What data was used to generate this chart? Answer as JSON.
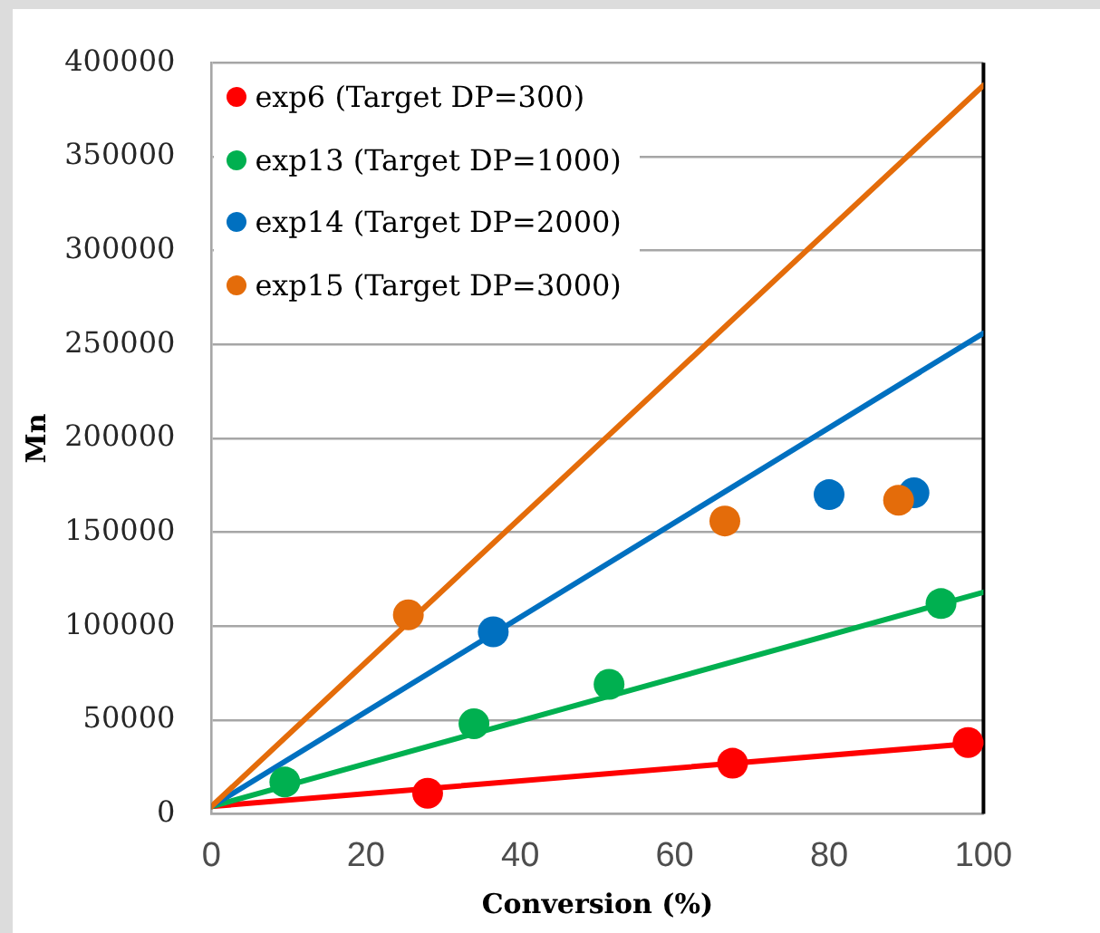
{
  "chart_data": {
    "type": "scatter",
    "xlabel": "Conversion (%)",
    "ylabel": "Mn",
    "xlim": [
      0,
      100
    ],
    "xticks": [
      0,
      20,
      40,
      60,
      80,
      100
    ],
    "ylim": [
      0,
      400000
    ],
    "yticks": [
      0,
      50000,
      100000,
      150000,
      200000,
      250000,
      300000,
      350000,
      400000
    ],
    "grid": "y",
    "legend": "top left",
    "marker": "circle",
    "ref_lines": [
      {
        "axis": "x",
        "value": 100,
        "color": "#000000"
      }
    ],
    "series": [
      {
        "type": "line",
        "marker": "none",
        "color": "#ff0000",
        "x": [
          0,
          100
        ],
        "values": [
          4000,
          38000
        ]
      },
      {
        "type": "line",
        "marker": "none",
        "color": "#00b050",
        "x": [
          0,
          100
        ],
        "values": [
          4000,
          118000
        ]
      },
      {
        "type": "line",
        "marker": "none",
        "color": "#0070c0",
        "x": [
          0,
          100
        ],
        "values": [
          4000,
          256000
        ]
      },
      {
        "type": "line",
        "marker": "none",
        "color": "#e46c0a",
        "x": [
          0,
          100
        ],
        "values": [
          4000,
          388000
        ]
      },
      {
        "name": "exp6 (Target DP=300)",
        "color": "#ff0000",
        "x": [
          28,
          67.5,
          98
        ],
        "values": [
          11000,
          27000,
          38000
        ]
      },
      {
        "name": "exp13 (Target DP=1000)",
        "color": "#00b050",
        "x": [
          9.5,
          34,
          51.5,
          94.5
        ],
        "values": [
          17000,
          48000,
          69000,
          112000
        ]
      },
      {
        "name": "exp14 (Target DP=2000)",
        "color": "#0070c0",
        "x": [
          36.5,
          80,
          91
        ],
        "values": [
          97000,
          170000,
          171000
        ]
      },
      {
        "name": "exp15 (Target DP=3000)",
        "color": "#e46c0a",
        "x": [
          25.5,
          66.5,
          89
        ],
        "values": [
          106000,
          156000,
          167000
        ]
      }
    ]
  }
}
